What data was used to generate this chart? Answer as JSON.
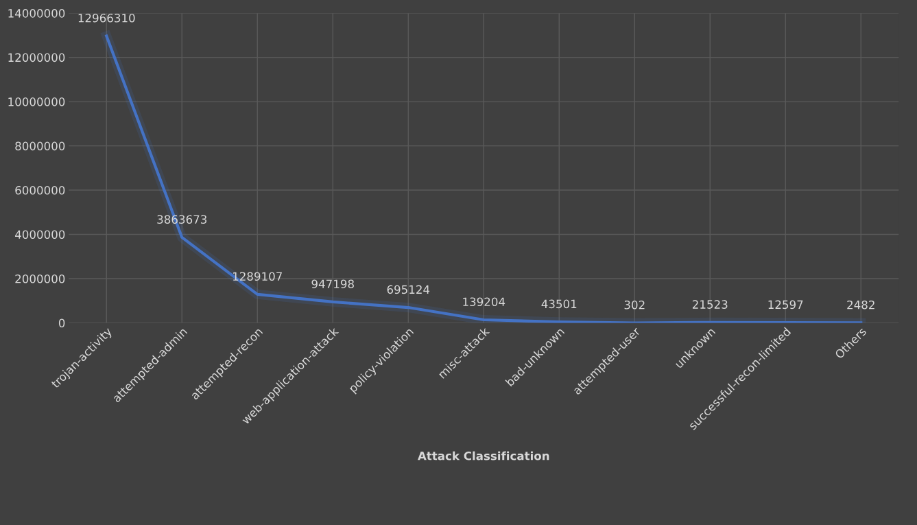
{
  "chart_data": {
    "type": "line",
    "xlabel": "Attack Classification",
    "categories": [
      "trojan-activity",
      "attempted-admin",
      "attempted-recon",
      "web-application-attack",
      "policy-violation",
      "misc-attack",
      "bad-unknown",
      "attempted-user",
      "unknown",
      "successful-recon-limited",
      "Others"
    ],
    "series": [
      {
        "color": "#4472c4",
        "values": [
          12966310,
          3863673,
          1289107,
          947198,
          695124,
          139204,
          43501,
          302,
          21523,
          12597,
          2482
        ]
      }
    ],
    "ylim": [
      0,
      14000000
    ],
    "yticks": [
      0,
      2000000,
      4000000,
      6000000,
      8000000,
      10000000,
      12000000,
      14000000
    ],
    "grid": true,
    "data_labels": true,
    "marker": "none",
    "line_style": "solid",
    "legend": false
  }
}
